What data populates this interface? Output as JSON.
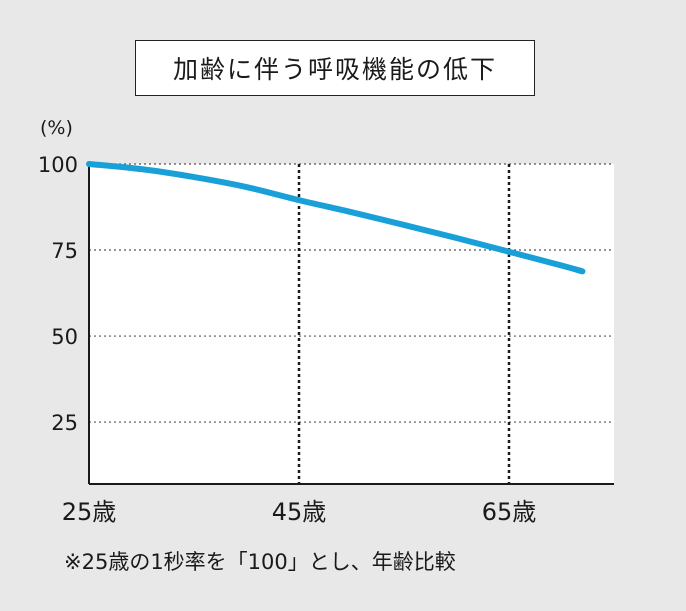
{
  "title": "加齢に伴う呼吸機能の低下",
  "footnote": "※25歳の1秒率を「100」とし、年齢比較",
  "colors": {
    "line": "#1aa0d8",
    "plot_background": "#ffffff",
    "page_background": "#e8e8e8",
    "grid": "#555555"
  },
  "chart_data": {
    "type": "line",
    "title": "加齢に伴う呼吸機能の低下",
    "ylabel": "(%)",
    "xlabel": "",
    "categories_x": [
      25,
      45,
      65
    ],
    "x_tick_labels": [
      "25歳",
      "45歳",
      "65歳"
    ],
    "y_ticks": [
      25,
      50,
      75,
      100
    ],
    "y_tick_labels": [
      "25",
      "50",
      "75",
      "100"
    ],
    "ylim": [
      7,
      100
    ],
    "xlim": [
      25,
      75
    ],
    "grid": true,
    "series": [
      {
        "x": [
          25,
          30,
          35,
          40,
          45,
          50,
          55,
          60,
          65,
          70,
          72
        ],
        "y": [
          100,
          98.5,
          96.2,
          93.3,
          89.5,
          86,
          82.3,
          78.5,
          74.5,
          70.5,
          68.8
        ]
      }
    ]
  }
}
